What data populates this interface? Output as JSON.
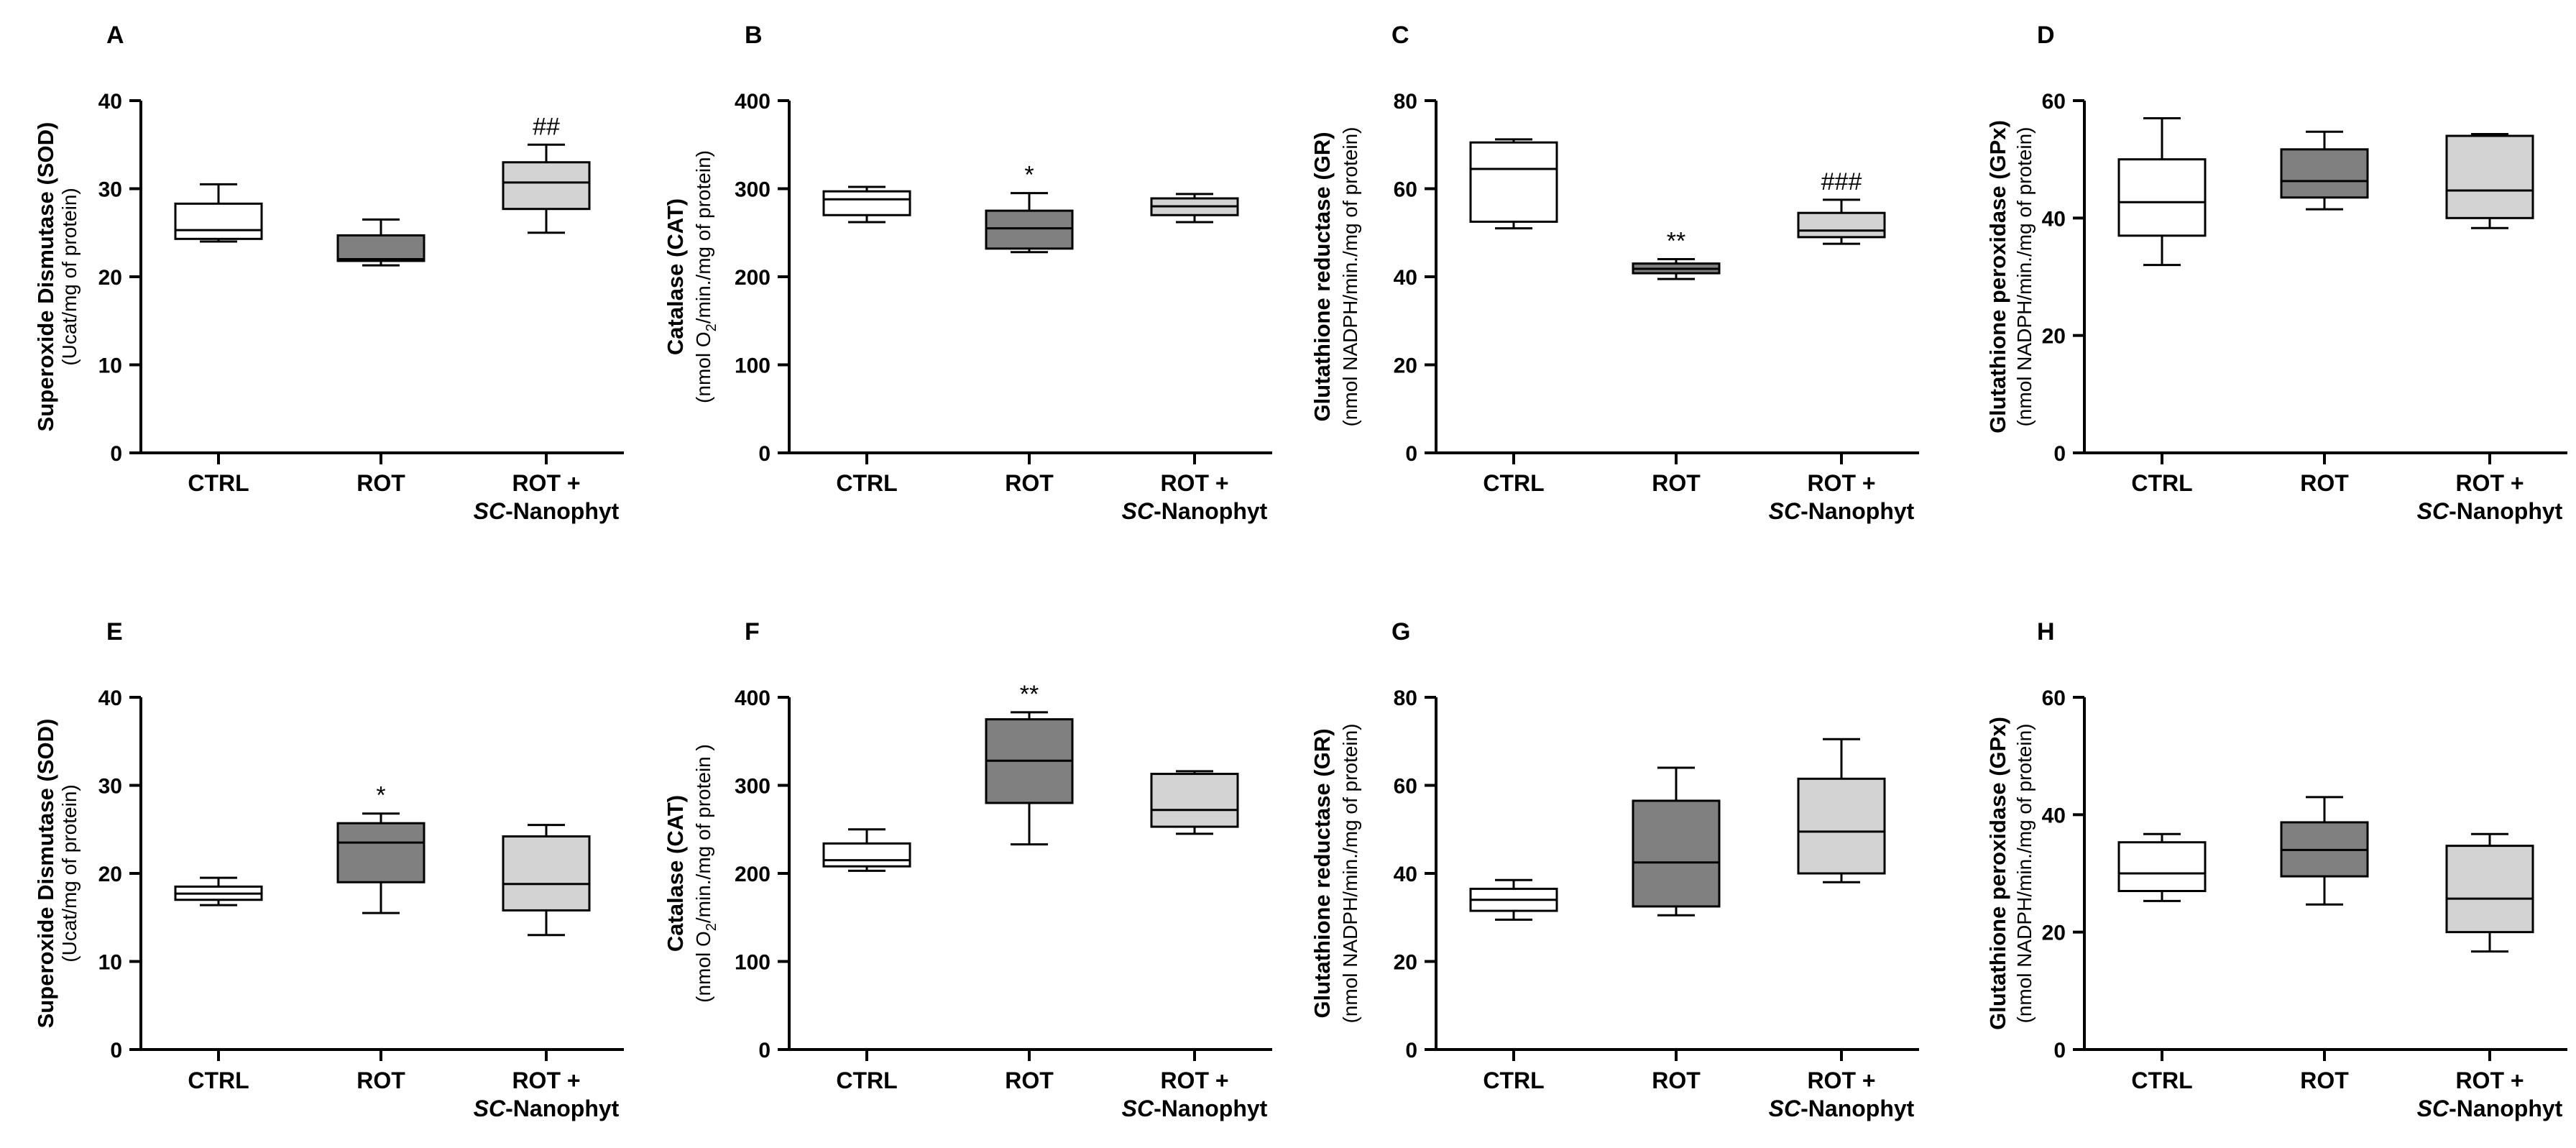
{
  "figure": {
    "category_line1": [
      "CTRL",
      "ROT",
      "ROT +"
    ],
    "category_line2_italic": "SC",
    "category_line2_rest": "-Nanophyt",
    "fills": [
      "#ffffff",
      "#808080",
      "#d3d3d3"
    ],
    "stroke": "#000000"
  },
  "chart_data": [
    {
      "type": "box",
      "panel": "A",
      "ylabel": "Superoxide Dismutase (SOD)",
      "ylabel_unit": "(Ucat/mg of protein)",
      "ylim": [
        0,
        40
      ],
      "yticks": [
        0,
        10,
        20,
        30,
        40
      ],
      "categories": [
        "CTRL",
        "ROT",
        "ROT + SC-Nanophyt"
      ],
      "boxes": [
        {
          "min": 24,
          "q1": 24.3,
          "median": 25.3,
          "q3": 28.3,
          "max": 30.5
        },
        {
          "min": 21.3,
          "q1": 21.8,
          "median": 22,
          "q3": 24.7,
          "max": 26.5
        },
        {
          "min": 25,
          "q1": 27.7,
          "median": 30.7,
          "q3": 33,
          "max": 35
        }
      ],
      "annotations": [
        "",
        "",
        "##"
      ]
    },
    {
      "type": "box",
      "panel": "B",
      "ylabel": "Catalase (CAT)",
      "ylabel_unit_pre": "(nmol O",
      "ylabel_unit_sub": "2",
      "ylabel_unit_post": "/min./mg of protein)",
      "ylim": [
        0,
        400
      ],
      "yticks": [
        0,
        100,
        200,
        300,
        400
      ],
      "categories": [
        "CTRL",
        "ROT",
        "ROT + SC-Nanophyt"
      ],
      "boxes": [
        {
          "min": 262,
          "q1": 270,
          "median": 288,
          "q3": 297,
          "max": 302
        },
        {
          "min": 228,
          "q1": 232,
          "median": 255,
          "q3": 275,
          "max": 295
        },
        {
          "min": 262,
          "q1": 270,
          "median": 280,
          "q3": 289,
          "max": 294
        }
      ],
      "annotations": [
        "",
        "*",
        ""
      ]
    },
    {
      "type": "box",
      "panel": "C",
      "ylabel": "Glutathione reductase (GR)",
      "ylabel_unit": "(nmol NADPH/min./mg of protein)",
      "ylim": [
        0,
        80
      ],
      "yticks": [
        0,
        20,
        40,
        60,
        80
      ],
      "categories": [
        "CTRL",
        "ROT",
        "ROT + SC-Nanophyt"
      ],
      "boxes": [
        {
          "min": 51,
          "q1": 52.5,
          "median": 64.5,
          "q3": 70.5,
          "max": 71.2
        },
        {
          "min": 39.5,
          "q1": 40.8,
          "median": 41.8,
          "q3": 43,
          "max": 44
        },
        {
          "min": 47.5,
          "q1": 49,
          "median": 50.5,
          "q3": 54.5,
          "max": 57.5
        }
      ],
      "annotations": [
        "",
        "**",
        "###"
      ]
    },
    {
      "type": "box",
      "panel": "D",
      "ylabel": "Glutathione peroxidase (GPx)",
      "ylabel_unit": "(nmol NADPH/min./mg of protein)",
      "ylim": [
        0,
        60
      ],
      "yticks": [
        0,
        20,
        40,
        60
      ],
      "categories": [
        "CTRL",
        "ROT",
        "ROT + SC-Nanophyt"
      ],
      "boxes": [
        {
          "min": 32,
          "q1": 37,
          "median": 42.7,
          "q3": 50,
          "max": 57
        },
        {
          "min": 41.5,
          "q1": 43.5,
          "median": 46.3,
          "q3": 51.7,
          "max": 54.7
        },
        {
          "min": 38.3,
          "q1": 40,
          "median": 44.7,
          "q3": 54,
          "max": 54.3
        }
      ],
      "annotations": [
        "",
        "",
        ""
      ]
    },
    {
      "type": "box",
      "panel": "E",
      "ylabel": "Superoxide Dismutase (SOD)",
      "ylabel_unit": "(Ucat/mg of protein)",
      "ylim": [
        0,
        40
      ],
      "yticks": [
        0,
        10,
        20,
        30,
        40
      ],
      "categories": [
        "CTRL",
        "ROT",
        "ROT + SC-Nanophyt"
      ],
      "boxes": [
        {
          "min": 16.4,
          "q1": 17,
          "median": 17.7,
          "q3": 18.5,
          "max": 19.5
        },
        {
          "min": 15.5,
          "q1": 19,
          "median": 23.5,
          "q3": 25.7,
          "max": 26.8
        },
        {
          "min": 13,
          "q1": 15.8,
          "median": 18.8,
          "q3": 24.2,
          "max": 25.5
        }
      ],
      "annotations": [
        "",
        "*",
        ""
      ]
    },
    {
      "type": "box",
      "panel": "F",
      "ylabel": "Catalase (CAT)",
      "ylabel_unit_pre": "(nmol O",
      "ylabel_unit_sub": "2",
      "ylabel_unit_post": "/min./mg of protein )",
      "ylim": [
        0,
        400
      ],
      "yticks": [
        0,
        100,
        200,
        300,
        400
      ],
      "categories": [
        "CTRL",
        "ROT",
        "ROT + SC-Nanophyt"
      ],
      "boxes": [
        {
          "min": 203,
          "q1": 208,
          "median": 215,
          "q3": 234,
          "max": 250
        },
        {
          "min": 233,
          "q1": 280,
          "median": 328,
          "q3": 375,
          "max": 383
        },
        {
          "min": 245,
          "q1": 253,
          "median": 272,
          "q3": 313,
          "max": 316
        }
      ],
      "annotations": [
        "",
        "**",
        ""
      ]
    },
    {
      "type": "box",
      "panel": "G",
      "ylabel": "Glutathione reductase (GR)",
      "ylabel_unit": "(nmol NADPH/min./mg of protein)",
      "ylim": [
        0,
        80
      ],
      "yticks": [
        0,
        20,
        40,
        60,
        80
      ],
      "categories": [
        "CTRL",
        "ROT",
        "ROT + SC-Nanophyt"
      ],
      "boxes": [
        {
          "min": 29.5,
          "q1": 31.5,
          "median": 34,
          "q3": 36.5,
          "max": 38.5
        },
        {
          "min": 30.5,
          "q1": 32.5,
          "median": 42.5,
          "q3": 56.5,
          "max": 64
        },
        {
          "min": 38,
          "q1": 40,
          "median": 49.5,
          "q3": 61.5,
          "max": 70.5
        }
      ],
      "annotations": [
        "",
        "",
        ""
      ]
    },
    {
      "type": "box",
      "panel": "H",
      "ylabel": "Glutathione peroxidase (GPx)",
      "ylabel_unit": "(nmol NADPH/min./mg of protein)",
      "ylim": [
        0,
        60
      ],
      "yticks": [
        0,
        20,
        40,
        60
      ],
      "categories": [
        "CTRL",
        "ROT",
        "ROT + SC-Nanophyt"
      ],
      "boxes": [
        {
          "min": 25.3,
          "q1": 27,
          "median": 30,
          "q3": 35.3,
          "max": 36.7
        },
        {
          "min": 24.7,
          "q1": 29.5,
          "median": 34,
          "q3": 38.7,
          "max": 43
        },
        {
          "min": 16.7,
          "q1": 20,
          "median": 25.7,
          "q3": 34.7,
          "max": 36.7
        }
      ],
      "annotations": [
        "",
        "",
        ""
      ]
    }
  ]
}
